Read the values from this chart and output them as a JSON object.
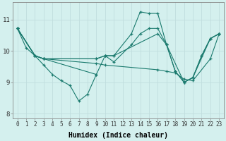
{
  "xlabel": "Humidex (Indice chaleur)",
  "bg_color": "#d4f0ee",
  "grid_color_major": "#c0dede",
  "grid_color_minor": "#daf0f0",
  "line_color": "#1a7a6e",
  "xlim": [
    -0.5,
    23.5
  ],
  "ylim": [
    7.85,
    11.55
  ],
  "yticks": [
    8,
    9,
    10,
    11
  ],
  "xticks": [
    0,
    1,
    2,
    3,
    4,
    5,
    6,
    7,
    8,
    9,
    10,
    11,
    12,
    13,
    14,
    15,
    16,
    17,
    18,
    19,
    20,
    21,
    22,
    23
  ],
  "lines": [
    {
      "x": [
        0,
        1,
        2,
        3,
        4,
        5,
        6,
        7,
        8,
        9
      ],
      "y": [
        10.72,
        10.1,
        9.85,
        9.55,
        9.25,
        9.05,
        8.9,
        8.4,
        8.62,
        9.25
      ]
    },
    {
      "x": [
        0,
        2,
        3,
        9,
        10,
        11,
        13,
        14,
        15,
        16,
        17,
        18,
        19,
        20,
        21,
        22,
        23
      ],
      "y": [
        10.72,
        9.85,
        9.75,
        9.75,
        9.85,
        9.85,
        10.55,
        11.25,
        11.2,
        11.2,
        10.2,
        9.35,
        9.0,
        9.15,
        9.85,
        10.4,
        10.55
      ]
    },
    {
      "x": [
        0,
        2,
        3,
        9,
        10,
        11,
        16,
        17,
        19,
        20,
        22,
        23
      ],
      "y": [
        10.72,
        9.85,
        9.75,
        9.75,
        9.85,
        9.85,
        10.55,
        10.2,
        9.0,
        9.15,
        10.4,
        10.55
      ]
    },
    {
      "x": [
        0,
        2,
        3,
        9,
        10,
        16,
        17,
        18,
        19,
        20,
        22,
        23
      ],
      "y": [
        10.72,
        9.85,
        9.75,
        9.6,
        9.55,
        9.4,
        9.35,
        9.3,
        9.1,
        9.05,
        9.75,
        10.55
      ]
    },
    {
      "x": [
        0,
        2,
        3,
        9,
        10,
        11,
        13,
        14,
        15,
        16,
        17,
        18,
        19,
        20,
        21,
        22,
        23
      ],
      "y": [
        10.72,
        9.85,
        9.75,
        9.25,
        9.85,
        9.65,
        10.2,
        10.55,
        10.72,
        10.72,
        10.2,
        9.35,
        9.0,
        9.15,
        9.85,
        10.4,
        10.55
      ]
    }
  ]
}
